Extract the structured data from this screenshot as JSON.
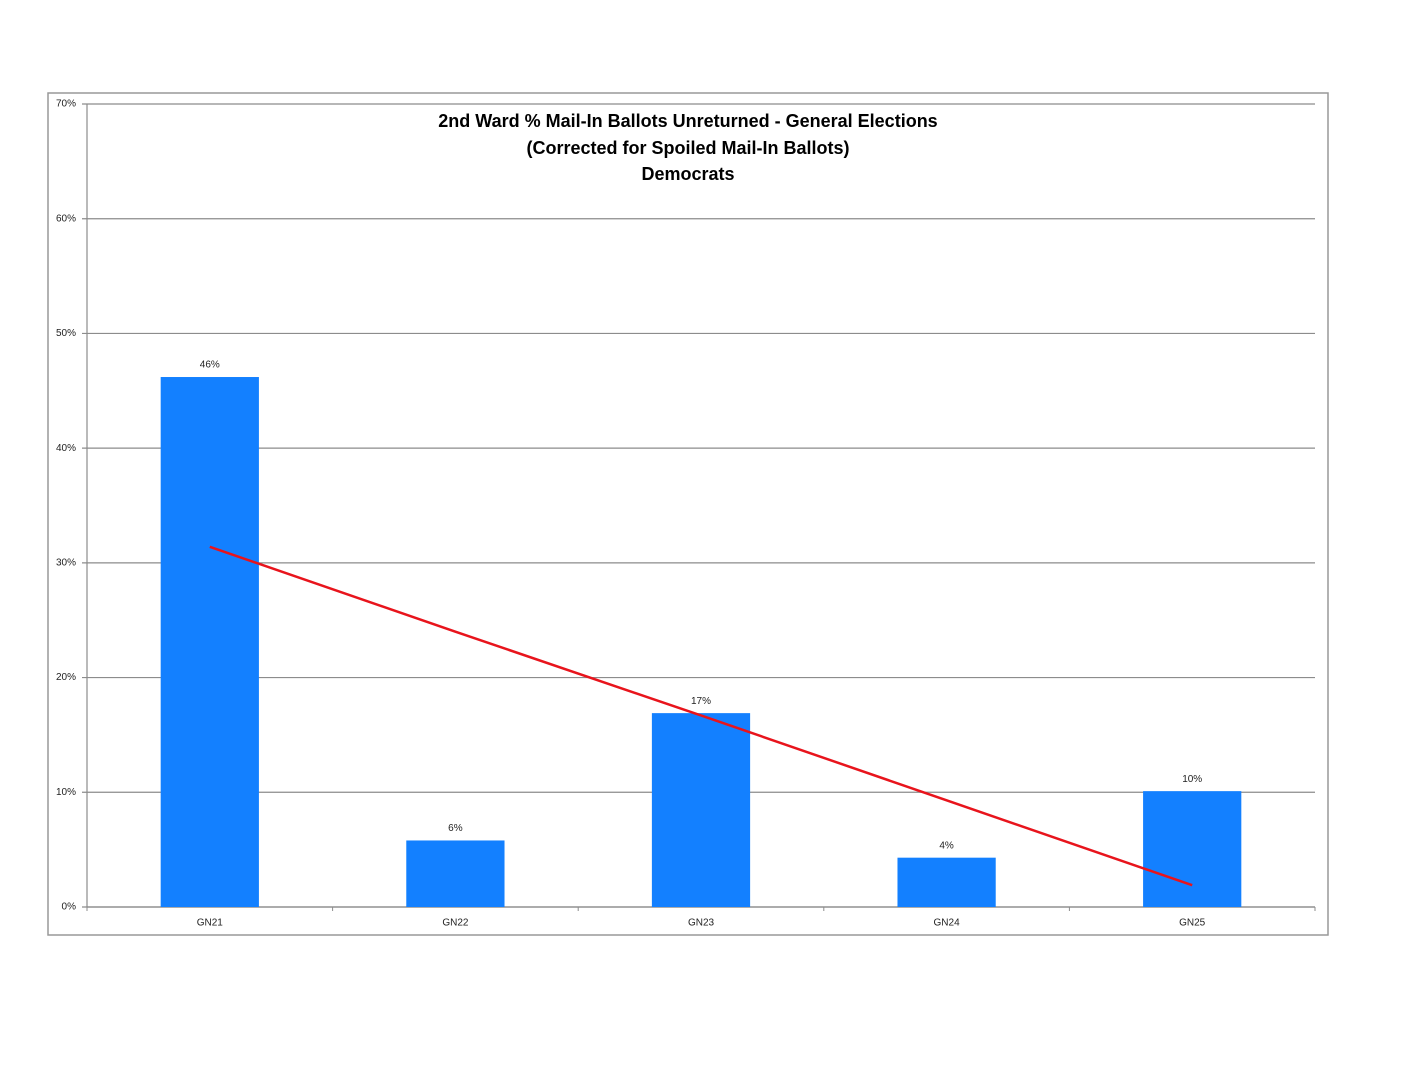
{
  "chart_data": {
    "type": "bar",
    "title": [
      "2nd Ward % Mail-In Ballots Unreturned - General Elections",
      "(Corrected for Spoiled Mail-In Ballots)",
      "Democrats"
    ],
    "categories": [
      "GN21",
      "GN22",
      "GN23",
      "GN24",
      "GN25"
    ],
    "values": [
      46.2,
      5.8,
      16.9,
      4.3,
      10.1
    ],
    "value_labels": [
      "46%",
      "6%",
      "17%",
      "4%",
      "10%"
    ],
    "color": "#1380ff",
    "trendline": {
      "color": "#e8141c",
      "values": [
        31.4,
        24.0,
        16.7,
        9.3,
        1.9
      ]
    },
    "ylim": [
      0,
      70
    ],
    "yticks": [
      {
        "value": 0,
        "label": "0%"
      },
      {
        "value": 10,
        "label": "10%"
      },
      {
        "value": 20,
        "label": "20%"
      },
      {
        "value": 30,
        "label": "30%"
      },
      {
        "value": 40,
        "label": "40%"
      },
      {
        "value": 50,
        "label": "50%"
      },
      {
        "value": 60,
        "label": "60%"
      },
      {
        "value": 70,
        "label": "70%"
      }
    ],
    "grid": true
  }
}
